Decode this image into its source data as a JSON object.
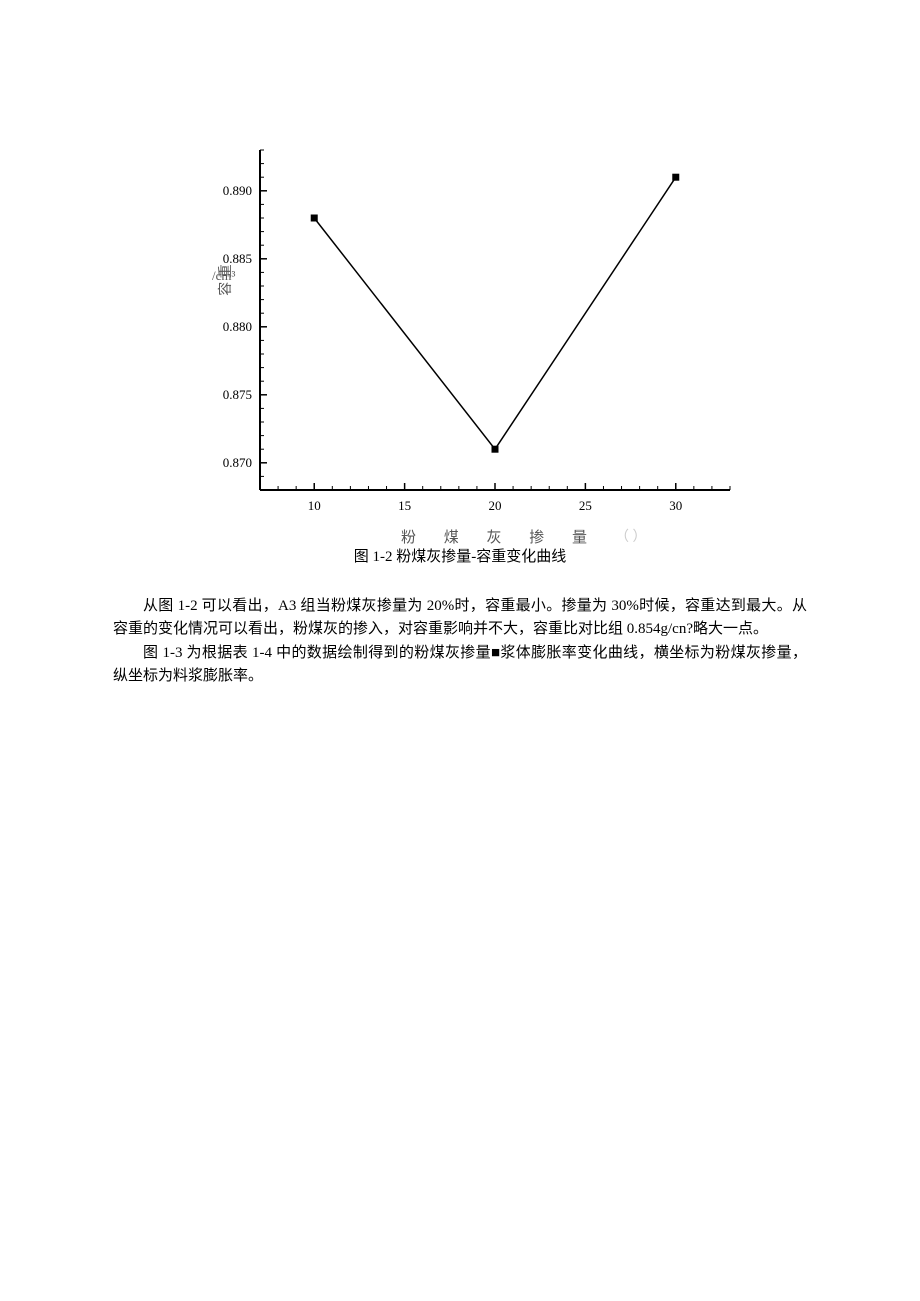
{
  "chart": {
    "type": "line",
    "x_values": [
      10,
      20,
      30
    ],
    "y_values": [
      0.888,
      0.871,
      0.891
    ],
    "xlim": [
      7,
      33
    ],
    "ylim": [
      0.868,
      0.893
    ],
    "x_ticks": [
      10,
      15,
      20,
      25,
      30
    ],
    "y_ticks": [
      0.87,
      0.875,
      0.88,
      0.885,
      0.89
    ],
    "y_tick_labels": [
      "0.870",
      "0.875",
      "0.880",
      "0.885",
      "0.890"
    ],
    "x_tick_labels": [
      "10",
      "15",
      "20",
      "25",
      "30"
    ],
    "line_color": "#000000",
    "line_width": 1.5,
    "marker_style": "square",
    "marker_size": 7,
    "marker_color": "#000000",
    "axis_color": "#000000",
    "axis_width": 2,
    "tick_length_major": 7,
    "tick_length_minor": 4,
    "y_minor_tick_step": 0.001,
    "x_minor_tick_step": 1,
    "background_color": "#ffffff",
    "tick_font_size": 13,
    "x_label": "粉 煤 灰 掺 量",
    "x_unit": "（ ）",
    "y_label": "容  重",
    "y_unit": "/cm³"
  },
  "caption": "图 1-2 粉煤灰掺量-容重变化曲线",
  "paragraphs": {
    "p1": "从图 1-2 可以看出，A3 组当粉煤灰掺量为 20%时，容重最小。掺量为 30%时候，容重达到最大。从容重的变化情况可以看出，粉煤灰的掺入，对容重影响并不大，容重比对比组 0.854g/cn?略大一点。",
    "p2": "图 1-3 为根据表 1-4 中的数据绘制得到的粉煤灰掺量■浆体膨胀率变化曲线，横坐标为粉煤灰掺量，纵坐标为料浆膨胀率。"
  }
}
